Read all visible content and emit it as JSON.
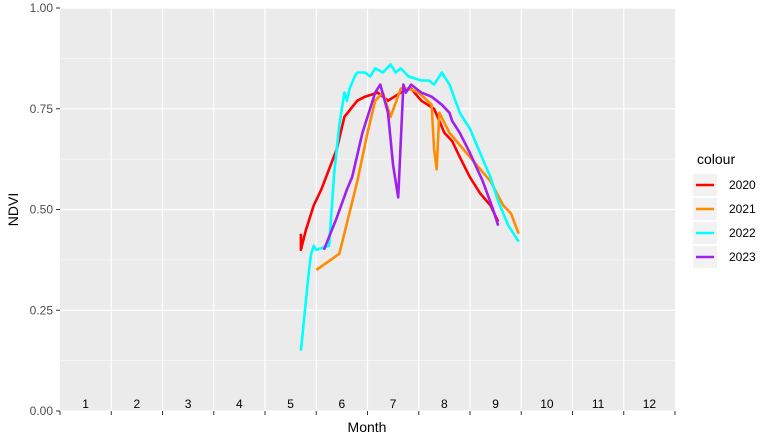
{
  "chart_data": {
    "type": "line",
    "xlabel": "Month",
    "ylabel": "NDVI",
    "xlim": [
      0.5,
      12.5
    ],
    "ylim": [
      0,
      1
    ],
    "y_ticks": [
      "0.00",
      "0.25",
      "0.50",
      "0.75",
      "1.00"
    ],
    "y_tick_values": [
      0,
      0.25,
      0.5,
      0.75,
      1.0
    ],
    "month_labels": [
      "1",
      "2",
      "3",
      "4",
      "5",
      "6",
      "7",
      "8",
      "9",
      "10",
      "11",
      "12"
    ],
    "grid": true,
    "legend": {
      "title": "colour",
      "position": "right"
    },
    "series": [
      {
        "name": "2020",
        "color": "#ff0000",
        "x": [
          5.2,
          5.2,
          5.3,
          5.45,
          5.6,
          5.9,
          6.05,
          6.3,
          6.45,
          6.7,
          6.9,
          7.15,
          7.35,
          7.55,
          7.8,
          7.9,
          8.0,
          8.15,
          8.3,
          8.5,
          8.7,
          8.9,
          9.05
        ],
        "y": [
          0.44,
          0.4,
          0.45,
          0.51,
          0.55,
          0.65,
          0.73,
          0.77,
          0.78,
          0.79,
          0.77,
          0.79,
          0.8,
          0.77,
          0.75,
          0.72,
          0.69,
          0.67,
          0.63,
          0.58,
          0.54,
          0.51,
          0.47
        ]
      },
      {
        "name": "2021",
        "color": "#ff8c00",
        "x": [
          5.5,
          5.95,
          6.3,
          6.5,
          6.65,
          6.8,
          6.95,
          7.15,
          7.3,
          7.5,
          7.75,
          7.8,
          7.85,
          7.9,
          8.1,
          8.5,
          8.9,
          9.15,
          9.3,
          9.45
        ],
        "y": [
          0.35,
          0.39,
          0.57,
          0.69,
          0.77,
          0.79,
          0.73,
          0.8,
          0.8,
          0.79,
          0.76,
          0.65,
          0.6,
          0.74,
          0.69,
          0.63,
          0.57,
          0.51,
          0.49,
          0.44
        ]
      },
      {
        "name": "2022",
        "color": "#00ffff",
        "x": [
          5.2,
          5.35,
          5.4,
          5.45,
          5.5,
          5.75,
          5.85,
          5.95,
          6.05,
          6.1,
          6.15,
          6.25,
          6.3,
          6.45,
          6.55,
          6.65,
          6.8,
          6.95,
          7.05,
          7.15,
          7.3,
          7.55,
          7.7,
          7.8,
          7.95,
          8.1,
          8.3,
          8.5,
          8.7,
          8.9,
          9.05,
          9.25,
          9.45
        ],
        "y": [
          0.15,
          0.34,
          0.39,
          0.41,
          0.4,
          0.41,
          0.59,
          0.71,
          0.79,
          0.77,
          0.8,
          0.83,
          0.84,
          0.84,
          0.83,
          0.85,
          0.84,
          0.86,
          0.84,
          0.85,
          0.83,
          0.82,
          0.82,
          0.81,
          0.84,
          0.81,
          0.74,
          0.7,
          0.64,
          0.58,
          0.52,
          0.46,
          0.42
        ]
      },
      {
        "name": "2023",
        "color": "#a020f0",
        "x": [
          5.65,
          5.9,
          6.1,
          6.2,
          6.4,
          6.55,
          6.65,
          6.75,
          6.9,
          7.0,
          7.1,
          7.2,
          7.25,
          7.35,
          7.55,
          7.75,
          7.95,
          8.1,
          8.15,
          8.3,
          8.5,
          8.75,
          8.95,
          9.05
        ],
        "y": [
          0.4,
          0.48,
          0.55,
          0.58,
          0.69,
          0.75,
          0.79,
          0.81,
          0.74,
          0.61,
          0.53,
          0.81,
          0.79,
          0.81,
          0.79,
          0.78,
          0.76,
          0.74,
          0.72,
          0.69,
          0.64,
          0.57,
          0.5,
          0.46
        ]
      }
    ]
  }
}
